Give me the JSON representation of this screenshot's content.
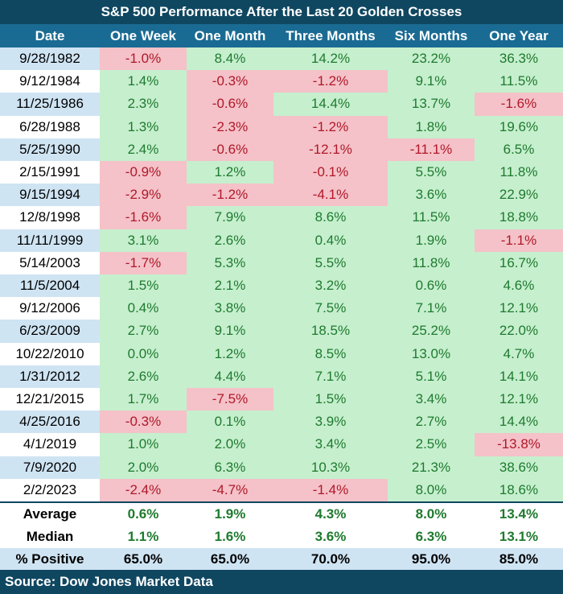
{
  "title": "S&P 500 Performance After the Last 20 Golden Crosses",
  "headers": [
    "Date",
    "One Week",
    "One Month",
    "Three Months",
    "Six Months",
    "One Year"
  ],
  "rows": [
    {
      "date": "9/28/1982",
      "values": [
        "-1.0%",
        "8.4%",
        "14.2%",
        "23.2%",
        "36.3%"
      ]
    },
    {
      "date": "9/12/1984",
      "values": [
        "1.4%",
        "-0.3%",
        "-1.2%",
        "9.1%",
        "11.5%"
      ]
    },
    {
      "date": "11/25/1986",
      "values": [
        "2.3%",
        "-0.6%",
        "14.4%",
        "13.7%",
        "-1.6%"
      ]
    },
    {
      "date": "6/28/1988",
      "values": [
        "1.3%",
        "-2.3%",
        "-1.2%",
        "1.8%",
        "19.6%"
      ]
    },
    {
      "date": "5/25/1990",
      "values": [
        "2.4%",
        "-0.6%",
        "-12.1%",
        "-11.1%",
        "6.5%"
      ]
    },
    {
      "date": "2/15/1991",
      "values": [
        "-0.9%",
        "1.2%",
        "-0.1%",
        "5.5%",
        "11.8%"
      ]
    },
    {
      "date": "9/15/1994",
      "values": [
        "-2.9%",
        "-1.2%",
        "-4.1%",
        "3.6%",
        "22.9%"
      ]
    },
    {
      "date": "12/8/1998",
      "values": [
        "-1.6%",
        "7.9%",
        "8.6%",
        "11.5%",
        "18.8%"
      ]
    },
    {
      "date": "11/11/1999",
      "values": [
        "3.1%",
        "2.6%",
        "0.4%",
        "1.9%",
        "-1.1%"
      ]
    },
    {
      "date": "5/14/2003",
      "values": [
        "-1.7%",
        "5.3%",
        "5.5%",
        "11.8%",
        "16.7%"
      ]
    },
    {
      "date": "11/5/2004",
      "values": [
        "1.5%",
        "2.1%",
        "3.2%",
        "0.6%",
        "4.6%"
      ]
    },
    {
      "date": "9/12/2006",
      "values": [
        "0.4%",
        "3.8%",
        "7.5%",
        "7.1%",
        "12.1%"
      ]
    },
    {
      "date": "6/23/2009",
      "values": [
        "2.7%",
        "9.1%",
        "18.5%",
        "25.2%",
        "22.0%"
      ]
    },
    {
      "date": "10/22/2010",
      "values": [
        "0.0%",
        "1.2%",
        "8.5%",
        "13.0%",
        "4.7%"
      ]
    },
    {
      "date": "1/31/2012",
      "values": [
        "2.6%",
        "4.4%",
        "7.1%",
        "5.1%",
        "14.1%"
      ]
    },
    {
      "date": "12/21/2015",
      "values": [
        "1.7%",
        "-7.5%",
        "1.5%",
        "3.4%",
        "12.1%"
      ]
    },
    {
      "date": "4/25/2016",
      "values": [
        "-0.3%",
        "0.1%",
        "3.9%",
        "2.7%",
        "14.4%"
      ]
    },
    {
      "date": "4/1/2019",
      "values": [
        "1.0%",
        "2.0%",
        "3.4%",
        "2.5%",
        "-13.8%"
      ]
    },
    {
      "date": "7/9/2020",
      "values": [
        "2.0%",
        "6.3%",
        "10.3%",
        "21.3%",
        "38.6%"
      ]
    },
    {
      "date": "2/2/2023",
      "values": [
        "-2.4%",
        "-4.7%",
        "-1.4%",
        "8.0%",
        "18.6%"
      ]
    }
  ],
  "summary": [
    {
      "label": "Average",
      "values": [
        "0.6%",
        "1.9%",
        "4.3%",
        "8.0%",
        "13.4%"
      ]
    },
    {
      "label": "Median",
      "values": [
        "1.1%",
        "1.6%",
        "3.6%",
        "6.3%",
        "13.1%"
      ]
    },
    {
      "label": "% Positive",
      "values": [
        "65.0%",
        "65.0%",
        "70.0%",
        "95.0%",
        "85.0%"
      ]
    }
  ],
  "source": "Source: Dow Jones Market Data",
  "colors": {
    "title_bg": "#0f4761",
    "header_bg": "#1a6b93",
    "positive_bg": "#c6efce",
    "positive_text": "#1e7a2e",
    "negative_bg": "#f4c2c8",
    "negative_text": "#b0182a",
    "date_alt_bg": "#cfe4f3"
  },
  "chart_data": {
    "type": "table",
    "title": "S&P 500 Performance After the Last 20 Golden Crosses",
    "columns": [
      "Date",
      "One Week",
      "One Month",
      "Three Months",
      "Six Months",
      "One Year"
    ],
    "units": "% return",
    "dates": [
      "9/28/1982",
      "9/12/1984",
      "11/25/1986",
      "6/28/1988",
      "5/25/1990",
      "2/15/1991",
      "9/15/1994",
      "12/8/1998",
      "11/11/1999",
      "5/14/2003",
      "11/5/2004",
      "9/12/2006",
      "6/23/2009",
      "10/22/2010",
      "1/31/2012",
      "12/21/2015",
      "4/25/2016",
      "4/1/2019",
      "7/9/2020",
      "2/2/2023"
    ],
    "series": [
      {
        "name": "One Week",
        "values": [
          -1.0,
          1.4,
          2.3,
          1.3,
          2.4,
          -0.9,
          -2.9,
          -1.6,
          3.1,
          -1.7,
          1.5,
          0.4,
          2.7,
          0.0,
          2.6,
          1.7,
          -0.3,
          1.0,
          2.0,
          -2.4
        ],
        "average": 0.6,
        "median": 1.1,
        "pct_positive": 65.0
      },
      {
        "name": "One Month",
        "values": [
          8.4,
          -0.3,
          -0.6,
          -2.3,
          -0.6,
          1.2,
          -1.2,
          7.9,
          2.6,
          5.3,
          2.1,
          3.8,
          9.1,
          1.2,
          4.4,
          -7.5,
          0.1,
          2.0,
          6.3,
          -4.7
        ],
        "average": 1.9,
        "median": 1.6,
        "pct_positive": 65.0
      },
      {
        "name": "Three Months",
        "values": [
          14.2,
          -1.2,
          14.4,
          -1.2,
          -12.1,
          -0.1,
          -4.1,
          8.6,
          0.4,
          5.5,
          3.2,
          7.5,
          18.5,
          8.5,
          7.1,
          1.5,
          3.9,
          3.4,
          10.3,
          -1.4
        ],
        "average": 4.3,
        "median": 3.6,
        "pct_positive": 70.0
      },
      {
        "name": "Six Months",
        "values": [
          23.2,
          9.1,
          13.7,
          1.8,
          -11.1,
          5.5,
          3.6,
          11.5,
          1.9,
          11.8,
          0.6,
          7.1,
          25.2,
          13.0,
          5.1,
          3.4,
          2.7,
          2.5,
          21.3,
          8.0
        ],
        "average": 8.0,
        "median": 6.3,
        "pct_positive": 95.0
      },
      {
        "name": "One Year",
        "values": [
          36.3,
          11.5,
          -1.6,
          19.6,
          6.5,
          11.8,
          22.9,
          18.8,
          -1.1,
          16.7,
          4.6,
          12.1,
          22.0,
          4.7,
          14.1,
          12.1,
          14.4,
          -13.8,
          38.6,
          18.6
        ],
        "average": 13.4,
        "median": 13.1,
        "pct_positive": 85.0
      }
    ],
    "source": "Dow Jones Market Data"
  }
}
